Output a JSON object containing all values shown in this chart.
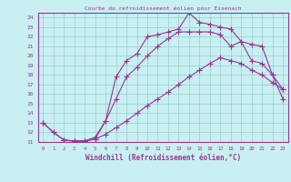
{
  "title": "Courbe du refroidissement éolien pour Eisenach",
  "xlabel": "Windchill (Refroidissement éolien,°C)",
  "bg_color": "#c8f0f0",
  "line_color": "#993399",
  "grid_color": "#99cccc",
  "xlim": [
    -0.5,
    23.5
  ],
  "ylim": [
    11,
    24.5
  ],
  "xticks": [
    0,
    1,
    2,
    3,
    4,
    5,
    6,
    7,
    8,
    9,
    10,
    11,
    12,
    13,
    14,
    15,
    16,
    17,
    18,
    19,
    20,
    21,
    22,
    23
  ],
  "yticks": [
    11,
    12,
    13,
    14,
    15,
    16,
    17,
    18,
    19,
    20,
    21,
    22,
    23,
    24
  ],
  "curve1_x": [
    0,
    1,
    2,
    3,
    4,
    5,
    6,
    7,
    8,
    9,
    10,
    11,
    12,
    13,
    14,
    15,
    16,
    17,
    18,
    19,
    20,
    21,
    22,
    23
  ],
  "curve1_y": [
    13.0,
    12.0,
    11.2,
    11.1,
    11.1,
    11.3,
    11.8,
    12.5,
    13.2,
    14.0,
    14.8,
    15.5,
    16.2,
    17.0,
    17.8,
    18.5,
    19.2,
    19.8,
    19.5,
    19.2,
    18.5,
    18.0,
    17.2,
    16.5
  ],
  "curve2_x": [
    0,
    1,
    2,
    3,
    4,
    5,
    6,
    7,
    8,
    9,
    10,
    11,
    12,
    13,
    14,
    15,
    16,
    17,
    18,
    19,
    20,
    21,
    22,
    23
  ],
  "curve2_y": [
    13.0,
    12.0,
    11.2,
    11.1,
    11.1,
    11.3,
    13.2,
    15.5,
    17.8,
    18.8,
    20.0,
    21.0,
    21.8,
    22.5,
    22.5,
    22.5,
    22.5,
    22.2,
    21.0,
    21.5,
    19.5,
    19.2,
    18.0,
    16.5
  ],
  "curve3_x": [
    2,
    3,
    4,
    5,
    6,
    7,
    8,
    9,
    10,
    11,
    12,
    13,
    14,
    15,
    16,
    17,
    18,
    19,
    20,
    21,
    22,
    23
  ],
  "curve3_y": [
    11.2,
    11.1,
    11.1,
    11.5,
    13.2,
    17.8,
    19.5,
    20.2,
    22.0,
    22.2,
    22.5,
    22.8,
    24.5,
    23.5,
    23.3,
    23.0,
    22.8,
    21.5,
    21.2,
    21.0,
    18.0,
    15.5
  ]
}
